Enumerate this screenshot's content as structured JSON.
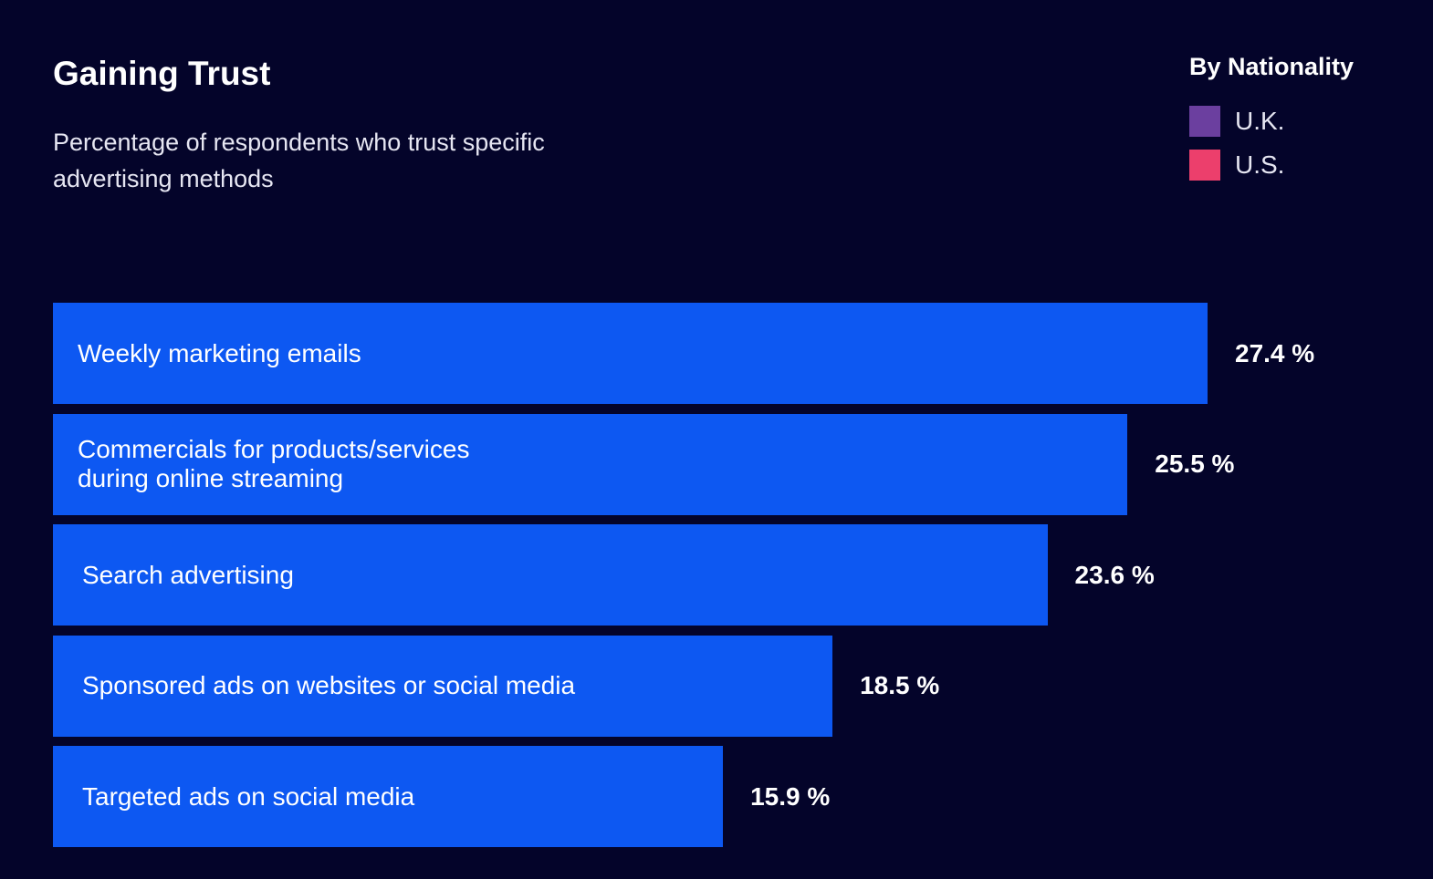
{
  "chart_data": {
    "type": "bar",
    "orientation": "horizontal",
    "title": "Gaining Trust",
    "subtitle": "Percentage of respondents who trust specific advertising methods",
    "categories": [
      "Weekly marketing emails",
      "Commercials for products/services\nduring online streaming",
      "Search advertising",
      "Sponsored ads on websites or social media",
      "Targeted ads on social media"
    ],
    "values": [
      27.4,
      25.5,
      23.6,
      18.5,
      15.9
    ],
    "value_labels": [
      "27.4 %",
      "25.5 %",
      "23.6 %",
      "18.5 %",
      "15.9 %"
    ],
    "unit": "%",
    "bar_color": "#0d58f2",
    "legend": {
      "title": "By Nationality",
      "position": "top-right",
      "items": [
        {
          "label": "U.K.",
          "color": "#6b3f9f"
        },
        {
          "label": "U.S.",
          "color": "#ec3f6c"
        }
      ]
    }
  }
}
